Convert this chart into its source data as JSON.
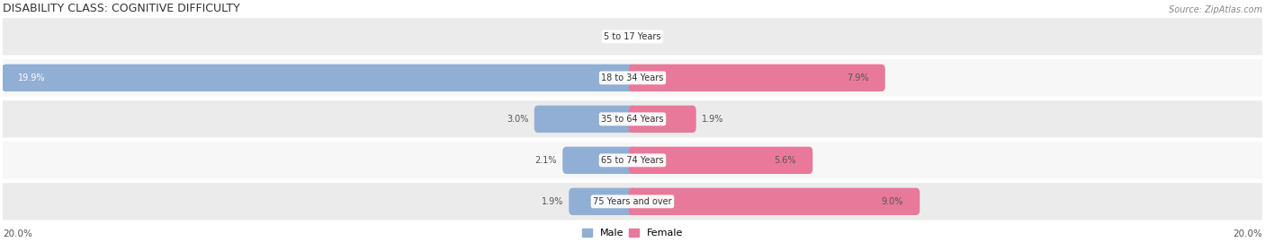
{
  "title": "DISABILITY CLASS: COGNITIVE DIFFICULTY",
  "source": "Source: ZipAtlas.com",
  "categories": [
    "5 to 17 Years",
    "18 to 34 Years",
    "35 to 64 Years",
    "65 to 74 Years",
    "75 Years and over"
  ],
  "male_values": [
    0.0,
    19.9,
    3.0,
    2.1,
    1.9
  ],
  "female_values": [
    0.0,
    7.9,
    1.9,
    5.6,
    9.0
  ],
  "male_color": "#91afd4",
  "female_color": "#e8799a",
  "row_bg_colors": [
    "#ebebeb",
    "#f7f7f7",
    "#ebebeb",
    "#f7f7f7",
    "#ebebeb"
  ],
  "axis_max": 20.0,
  "label_color_dark": "#555555",
  "label_color_white": "#ffffff",
  "title_fontsize": 9,
  "source_fontsize": 7,
  "label_fontsize": 7,
  "category_fontsize": 7,
  "axis_label_fontsize": 7.5,
  "legend_fontsize": 8
}
